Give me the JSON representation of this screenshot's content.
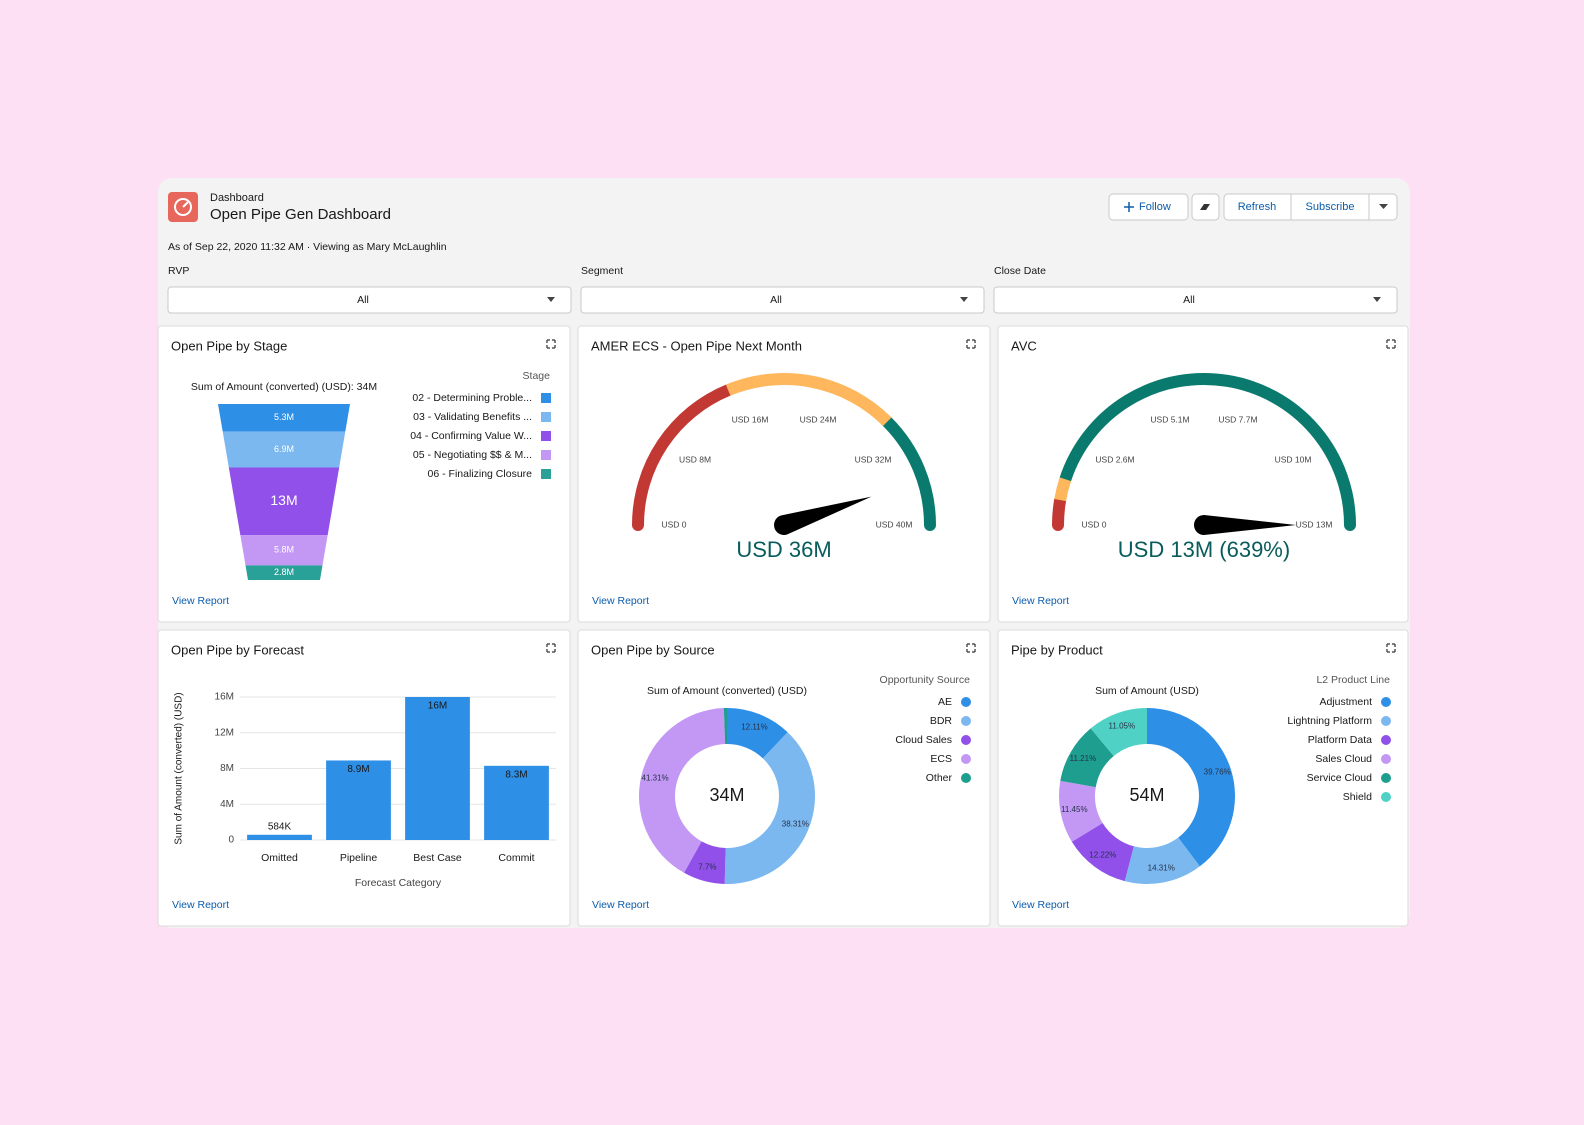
{
  "header": {
    "breadcrumb": "Dashboard",
    "title": "Open Pipe Gen Dashboard",
    "subtitle": "As of Sep 22, 2020 11:32 AM · Viewing as Mary McLaughlin",
    "buttons": [
      "Follow",
      "Refresh",
      "Subscribe"
    ]
  },
  "filters": [
    {
      "label": "RVP",
      "value": "All"
    },
    {
      "label": "Segment",
      "value": "All"
    },
    {
      "label": "Close Date",
      "value": "All"
    }
  ],
  "widgets": [
    {
      "type": "funnel",
      "title": "Open Pipe by Stage",
      "subtitle": "Sum of Amount (converted) (USD): 34M",
      "legend_title": "Stage",
      "categories": [
        "02 - Determining Proble...",
        "03 - Validating Benefits ...",
        "04 - Confirming Value W...",
        "05 - Negotiating $$ & M...",
        "06 - Finalizing Closure"
      ],
      "values": [
        5.3,
        6.9,
        13,
        5.8,
        2.8
      ],
      "value_labels": [
        "5.3M",
        "6.9M",
        "13M",
        "5.8M",
        "2.8M"
      ],
      "colors": [
        "#2e8fe6",
        "#7cb8f0",
        "#9050e9",
        "#c398f5",
        "#2aa198"
      ],
      "link": "View Report"
    },
    {
      "type": "gauge",
      "title": "AMER ECS - Open Pipe Next Month",
      "lim": [
        0,
        40
      ],
      "ticks": [
        {
          "value": 0,
          "label": "USD 0"
        },
        {
          "value": 8,
          "label": "USD 8M"
        },
        {
          "value": 16,
          "label": "USD 16M"
        },
        {
          "value": 24,
          "label": "USD 24M"
        },
        {
          "value": 32,
          "label": "USD 32M"
        },
        {
          "value": 40,
          "label": "USD 40M"
        }
      ],
      "bands": [
        {
          "from": 0,
          "to": 15,
          "color": "#c23934"
        },
        {
          "from": 15,
          "to": 30,
          "color": "#ffb75d"
        },
        {
          "from": 30,
          "to": 40,
          "color": "#0b7a6e"
        }
      ],
      "value": 36,
      "value_label": "USD 36M",
      "link": "View Report"
    },
    {
      "type": "gauge",
      "title": "AVC",
      "lim": [
        0,
        12.8
      ],
      "ticks": [
        {
          "value": 0,
          "label": "USD 0"
        },
        {
          "value": 2.56,
          "label": "USD 2.6M"
        },
        {
          "value": 5.12,
          "label": "USD 5.1M"
        },
        {
          "value": 7.68,
          "label": "USD 7.7M"
        },
        {
          "value": 10.24,
          "label": "USD 10M"
        },
        {
          "value": 12.8,
          "label": "USD 13M"
        }
      ],
      "bands": [
        {
          "from": 0,
          "to": 0.7,
          "color": "#c23934"
        },
        {
          "from": 0.7,
          "to": 1.3,
          "color": "#ffb75d"
        },
        {
          "from": 1.3,
          "to": 12.8,
          "color": "#0b7a6e"
        }
      ],
      "value": 12.8,
      "value_label": "USD 13M (639%)",
      "link": "View Report"
    },
    {
      "type": "bar",
      "title": "Open Pipe by Forecast",
      "ylabel": "Sum of Amount (converted) (USD)",
      "xlabel": "Forecast Category",
      "categories": [
        "Omitted",
        "Pipeline",
        "Best Case",
        "Commit"
      ],
      "values": [
        0.584,
        8.9,
        16,
        8.3
      ],
      "value_labels": [
        "584K",
        "8.9M",
        "16M",
        "8.3M"
      ],
      "ylim": [
        0,
        16
      ],
      "yticks": [
        0,
        {
          "value": 4,
          "label": "4M"
        },
        {
          "value": 8,
          "label": "8M"
        },
        {
          "value": 12,
          "label": "12M"
        },
        {
          "value": 16,
          "label": "16M"
        }
      ],
      "color": "#2e8fe6",
      "grid": true,
      "link": "View Report"
    },
    {
      "type": "donut",
      "title": "Open Pipe by Source",
      "subtitle": "Sum of Amount (converted) (USD)",
      "center_label": "34M",
      "legend_title": "Opportunity Source",
      "categories": [
        "AE",
        "BDR",
        "Cloud Sales",
        "ECS",
        "Other"
      ],
      "values": [
        12.11,
        38.31,
        7.7,
        41.31,
        0.57
      ],
      "value_labels": [
        "12.11%",
        "38.31%",
        "7.7%",
        "41.31%",
        null
      ],
      "colors": [
        "#2e8fe6",
        "#7cb8f0",
        "#9050e9",
        "#c398f5",
        "#1e9e8f"
      ],
      "link": "View Report"
    },
    {
      "type": "donut",
      "title": "Pipe by Product",
      "subtitle": "Sum of Amount (USD)",
      "center_label": "54M",
      "legend_title": "L2 Product Line",
      "categories": [
        "Adjustment",
        "Lightning Platform",
        "Platform Data",
        "Sales Cloud",
        "Service Cloud",
        "Shield"
      ],
      "values": [
        39.76,
        14.31,
        12.22,
        11.45,
        11.21,
        11.05
      ],
      "value_labels": [
        "39.76%",
        "14.31%",
        "12.22%",
        "11.45%",
        "11.21%",
        "11.05%"
      ],
      "colors": [
        "#2e8fe6",
        "#7cb8f0",
        "#9050e9",
        "#c398f5",
        "#1e9e8f",
        "#4fd1c5"
      ],
      "link": "View Report"
    }
  ]
}
